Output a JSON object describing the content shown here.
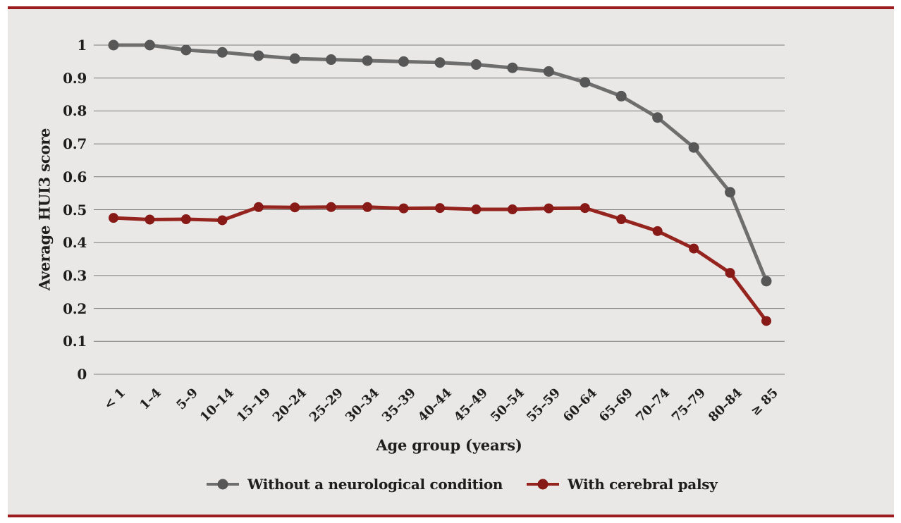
{
  "colors": {
    "page_background": "#ffffff",
    "panel_background": "#e9e8e6",
    "border_rule": "#9b1b1e",
    "gridline": "#7d7c7a",
    "text": "#1f1e1c"
  },
  "chart_data": {
    "type": "line",
    "title": "",
    "xlabel": "Age group (years)",
    "ylabel": "Average HUI3 score",
    "ylim": [
      0,
      1
    ],
    "ytick_step": 0.1,
    "grid": "horizontal",
    "legend_position": "bottom",
    "categories": [
      "< 1",
      "1–4",
      "5–9",
      "10–14",
      "15–19",
      "20–24",
      "25–29",
      "30–34",
      "35–39",
      "40–44",
      "45–49",
      "50–54",
      "55–59",
      "60–64",
      "65–69",
      "70–74",
      "75–79",
      "80–84",
      "≥ 85"
    ],
    "series": [
      {
        "name": "Without a neurological condition",
        "color": "#6e6e6e",
        "marker_color": "#575757",
        "values": [
          1.0,
          1.0,
          0.985,
          0.978,
          0.968,
          0.959,
          0.956,
          0.953,
          0.95,
          0.947,
          0.941,
          0.931,
          0.92,
          0.887,
          0.845,
          0.78,
          0.689,
          0.553,
          0.283
        ]
      },
      {
        "name": "With cerebral palsy",
        "color": "#95231e",
        "marker_color": "#871a17",
        "values": [
          0.475,
          0.47,
          0.471,
          0.468,
          0.508,
          0.507,
          0.508,
          0.508,
          0.504,
          0.505,
          0.501,
          0.501,
          0.504,
          0.505,
          0.471,
          0.435,
          0.382,
          0.308,
          0.162
        ]
      }
    ]
  }
}
